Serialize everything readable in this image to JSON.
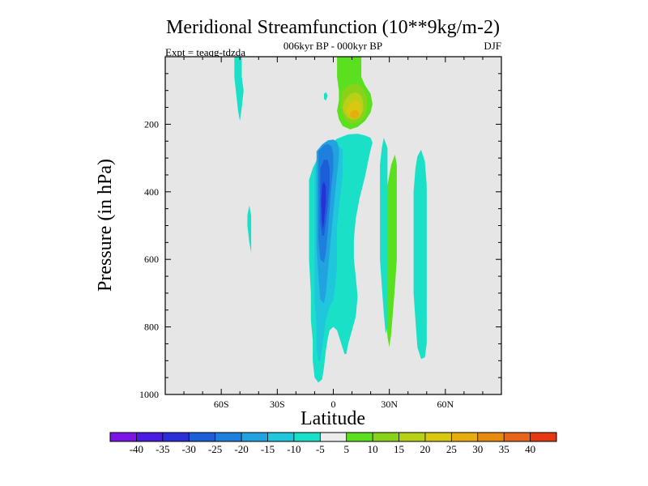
{
  "chart_data": {
    "type": "heatmap",
    "title": "Meridional Streamfunction (10**9kg/m-2)",
    "subtitle": "006kyr BP - 000kyr BP",
    "experiment_label": "Expt = teaqg-tdzda",
    "season": "DJF",
    "xlabel": "Latitude",
    "ylabel": "Pressure (in hPa)",
    "xlim": [
      -90,
      90
    ],
    "ylim": [
      1000,
      0
    ],
    "x_ticks": [
      {
        "value": -60,
        "label": "60S"
      },
      {
        "value": -30,
        "label": "30S"
      },
      {
        "value": 0,
        "label": "0"
      },
      {
        "value": 30,
        "label": "30N"
      },
      {
        "value": 60,
        "label": "60N"
      }
    ],
    "y_ticks": [
      {
        "value": 200,
        "label": "200"
      },
      {
        "value": 400,
        "label": "400"
      },
      {
        "value": 600,
        "label": "600"
      },
      {
        "value": 800,
        "label": "800"
      },
      {
        "value": 1000,
        "label": "1000"
      }
    ],
    "background_color": "#e6e6e6",
    "colorbar": {
      "colors": [
        "#7b15e6",
        "#4a1be0",
        "#2a2fd8",
        "#1c5ed8",
        "#1e7fdc",
        "#22a3e0",
        "#1fc6dc",
        "#1ae0c8",
        "#ececec",
        "#5ae01e",
        "#8ad21a",
        "#b8d016",
        "#d8c810",
        "#e6ac10",
        "#e68a10",
        "#e8641a",
        "#e43a14"
      ],
      "labels": [
        "-40",
        "-35",
        "-30",
        "-25",
        "-20",
        "-15",
        "-10",
        "-5",
        "5",
        "10",
        "15",
        "20",
        "25",
        "30",
        "35",
        "40"
      ]
    },
    "contours": [
      {
        "name": "neg-5",
        "color": "#1ae0c8",
        "points": [
          [
            -13,
            365
          ],
          [
            -11,
            330
          ],
          [
            -8,
            295
          ],
          [
            -4,
            268
          ],
          [
            2,
            243
          ],
          [
            8,
            230
          ],
          [
            13,
            228
          ],
          [
            17,
            233
          ],
          [
            20,
            240
          ],
          [
            21,
            255
          ],
          [
            20,
            275
          ],
          [
            19,
            300
          ],
          [
            17,
            355
          ],
          [
            14,
            420
          ],
          [
            12,
            480
          ],
          [
            11,
            540
          ],
          [
            11,
            600
          ],
          [
            12,
            650
          ],
          [
            13,
            710
          ],
          [
            12,
            770
          ],
          [
            10,
            810
          ],
          [
            8,
            850
          ],
          [
            7,
            880
          ],
          [
            6,
            880
          ],
          [
            4,
            845
          ],
          [
            2,
            810
          ],
          [
            0,
            800
          ],
          [
            -2,
            810
          ],
          [
            -3,
            835
          ],
          [
            -4,
            870
          ],
          [
            -5,
            920
          ],
          [
            -6,
            955
          ],
          [
            -8,
            965
          ],
          [
            -10,
            950
          ],
          [
            -11,
            900
          ],
          [
            -11,
            840
          ],
          [
            -12,
            780
          ],
          [
            -12,
            700
          ],
          [
            -13,
            600
          ],
          [
            -13,
            500
          ],
          [
            -13,
            420
          ]
        ]
      },
      {
        "name": "neg-10",
        "color": "#1fc6dc",
        "points": [
          [
            -10,
            330
          ],
          [
            -8,
            300
          ],
          [
            -4,
            280
          ],
          [
            0,
            270
          ],
          [
            3,
            265
          ],
          [
            5,
            275
          ],
          [
            5,
            300
          ],
          [
            5,
            350
          ],
          [
            4,
            400
          ],
          [
            3,
            450
          ],
          [
            2,
            500
          ],
          [
            2,
            560
          ],
          [
            2,
            620
          ],
          [
            1,
            680
          ],
          [
            0,
            720
          ],
          [
            -2,
            740
          ],
          [
            -4,
            780
          ],
          [
            -6,
            860
          ],
          [
            -7,
            900
          ],
          [
            -8,
            900
          ],
          [
            -9,
            860
          ],
          [
            -9,
            800
          ],
          [
            -10,
            720
          ],
          [
            -10,
            620
          ],
          [
            -10,
            500
          ],
          [
            -10,
            400
          ]
        ]
      },
      {
        "name": "neg-15",
        "color": "#22a3e0",
        "points": [
          [
            -9,
            280
          ],
          [
            -6,
            260
          ],
          [
            -3,
            248
          ],
          [
            0,
            245
          ],
          [
            2,
            252
          ],
          [
            3,
            270
          ],
          [
            3,
            300
          ],
          [
            2,
            350
          ],
          [
            1,
            400
          ],
          [
            0,
            460
          ],
          [
            -1,
            520
          ],
          [
            -2,
            580
          ],
          [
            -3,
            640
          ],
          [
            -4,
            700
          ],
          [
            -5,
            730
          ],
          [
            -7,
            720
          ],
          [
            -8,
            650
          ],
          [
            -9,
            560
          ],
          [
            -9,
            470
          ],
          [
            -9,
            380
          ],
          [
            -9,
            320
          ]
        ]
      },
      {
        "name": "neg-20",
        "color": "#1e7fdc",
        "points": [
          [
            -8,
            280
          ],
          [
            -5,
            262
          ],
          [
            -3,
            258
          ],
          [
            -1,
            265
          ],
          [
            0,
            290
          ],
          [
            0,
            330
          ],
          [
            -1,
            380
          ],
          [
            -2,
            450
          ],
          [
            -3,
            520
          ],
          [
            -4,
            580
          ],
          [
            -5,
            610
          ],
          [
            -7,
            600
          ],
          [
            -8,
            540
          ],
          [
            -8,
            450
          ],
          [
            -8,
            360
          ]
        ]
      },
      {
        "name": "neg-25",
        "color": "#1c5ed8",
        "points": [
          [
            -7,
            330
          ],
          [
            -5,
            305
          ],
          [
            -3,
            305
          ],
          [
            -2,
            330
          ],
          [
            -2,
            380
          ],
          [
            -3,
            440
          ],
          [
            -4,
            490
          ],
          [
            -5,
            530
          ],
          [
            -6,
            530
          ],
          [
            -7,
            490
          ],
          [
            -7,
            420
          ]
        ]
      },
      {
        "name": "neg-30",
        "color": "#2a2fd8",
        "points": [
          [
            -6,
            380
          ],
          [
            -5,
            370
          ],
          [
            -4,
            385
          ],
          [
            -4,
            430
          ],
          [
            -5,
            490
          ],
          [
            -5.5,
            510
          ],
          [
            -6,
            490
          ],
          [
            -6.5,
            430
          ]
        ]
      },
      {
        "name": "pos-5-top",
        "color": "#5ae01e",
        "points": [
          [
            2,
            0
          ],
          [
            15,
            0
          ],
          [
            15,
            60
          ],
          [
            17,
            85
          ],
          [
            20,
            110
          ],
          [
            21,
            140
          ],
          [
            20,
            165
          ],
          [
            17,
            190
          ],
          [
            13,
            208
          ],
          [
            9,
            215
          ],
          [
            5,
            205
          ],
          [
            3,
            185
          ],
          [
            2,
            160
          ],
          [
            3,
            130
          ],
          [
            3,
            100
          ],
          [
            2,
            60
          ]
        ]
      },
      {
        "name": "pos-10-top",
        "color": "#8ad21a",
        "points": [
          [
            5,
            100
          ],
          [
            9,
            82
          ],
          [
            13,
            80
          ],
          [
            16,
            95
          ],
          [
            18,
            120
          ],
          [
            18,
            150
          ],
          [
            17,
            175
          ],
          [
            14,
            193
          ],
          [
            10,
            198
          ],
          [
            7,
            190
          ],
          [
            5,
            170
          ],
          [
            4,
            150
          ],
          [
            4,
            125
          ]
        ]
      },
      {
        "name": "pos-15-top",
        "color": "#b8d016",
        "points": [
          [
            6,
            130
          ],
          [
            9,
            110
          ],
          [
            12,
            105
          ],
          [
            15,
            115
          ],
          [
            16,
            135
          ],
          [
            16,
            160
          ],
          [
            14,
            180
          ],
          [
            11,
            187
          ],
          [
            8,
            182
          ],
          [
            6,
            168
          ],
          [
            5,
            150
          ]
        ]
      },
      {
        "name": "pos-20-top",
        "color": "#d8c810",
        "points": [
          [
            8,
            145
          ],
          [
            11,
            130
          ],
          [
            13,
            130
          ],
          [
            15,
            145
          ],
          [
            15,
            165
          ],
          [
            13,
            180
          ],
          [
            10,
            182
          ],
          [
            8,
            172
          ],
          [
            7,
            160
          ]
        ]
      },
      {
        "name": "pos-25-top",
        "color": "#e6ac10",
        "points": [
          [
            9,
            165
          ],
          [
            11,
            158
          ],
          [
            13,
            160
          ],
          [
            14,
            170
          ],
          [
            13,
            180
          ],
          [
            11,
            183
          ],
          [
            9,
            178
          ]
        ]
      },
      {
        "name": "pos-5-30N",
        "color": "#5ae01e",
        "points": [
          [
            33,
            290
          ],
          [
            34,
            320
          ],
          [
            34,
            380
          ],
          [
            34,
            450
          ],
          [
            34,
            520
          ],
          [
            34,
            600
          ],
          [
            33,
            680
          ],
          [
            32,
            750
          ],
          [
            31,
            820
          ],
          [
            30,
            860
          ],
          [
            29,
            830
          ],
          [
            28,
            750
          ],
          [
            28,
            650
          ],
          [
            28,
            550
          ],
          [
            28,
            450
          ],
          [
            29,
            380
          ],
          [
            31,
            320
          ]
        ]
      },
      {
        "name": "neg-5-45N",
        "color": "#1ae0c8",
        "points": [
          [
            27,
            240
          ],
          [
            29,
            270
          ],
          [
            29,
            350
          ],
          [
            29,
            450
          ],
          [
            29,
            550
          ],
          [
            29,
            650
          ],
          [
            29,
            750
          ],
          [
            29,
            800
          ],
          [
            28,
            820
          ],
          [
            27,
            760
          ],
          [
            26,
            680
          ],
          [
            25,
            600
          ],
          [
            25,
            500
          ],
          [
            25,
            400
          ],
          [
            25,
            320
          ],
          [
            26,
            270
          ]
        ]
      },
      {
        "name": "neg-5-55N",
        "color": "#1ae0c8",
        "points": [
          [
            47,
            275
          ],
          [
            49,
            310
          ],
          [
            50,
            380
          ],
          [
            50,
            450
          ],
          [
            50,
            550
          ],
          [
            50,
            650
          ],
          [
            50,
            750
          ],
          [
            50,
            850
          ],
          [
            49,
            890
          ],
          [
            47,
            895
          ],
          [
            45,
            860
          ],
          [
            44,
            780
          ],
          [
            43,
            700
          ],
          [
            43,
            600
          ],
          [
            43,
            500
          ],
          [
            43,
            400
          ],
          [
            44,
            330
          ],
          [
            45,
            295
          ]
        ]
      },
      {
        "name": "neg-5-55S",
        "color": "#1ae0c8",
        "points": [
          [
            -53,
            0
          ],
          [
            -49,
            0
          ],
          [
            -49,
            60
          ],
          [
            -48,
            100
          ],
          [
            -49,
            150
          ],
          [
            -50,
            190
          ],
          [
            -51,
            160
          ],
          [
            -52,
            110
          ],
          [
            -53,
            60
          ]
        ]
      },
      {
        "name": "neg-5-45S",
        "color": "#1ae0c8",
        "points": [
          [
            -45,
            440
          ],
          [
            -44,
            470
          ],
          [
            -44,
            520
          ],
          [
            -44,
            560
          ],
          [
            -44,
            580
          ],
          [
            -45,
            550
          ],
          [
            -46,
            500
          ],
          [
            -46,
            470
          ]
        ]
      },
      {
        "name": "neg-5-small",
        "color": "#1ae0c8",
        "points": [
          [
            -5,
            110
          ],
          [
            -4,
            105
          ],
          [
            -3,
            115
          ],
          [
            -4,
            130
          ],
          [
            -5,
            125
          ]
        ]
      }
    ]
  }
}
